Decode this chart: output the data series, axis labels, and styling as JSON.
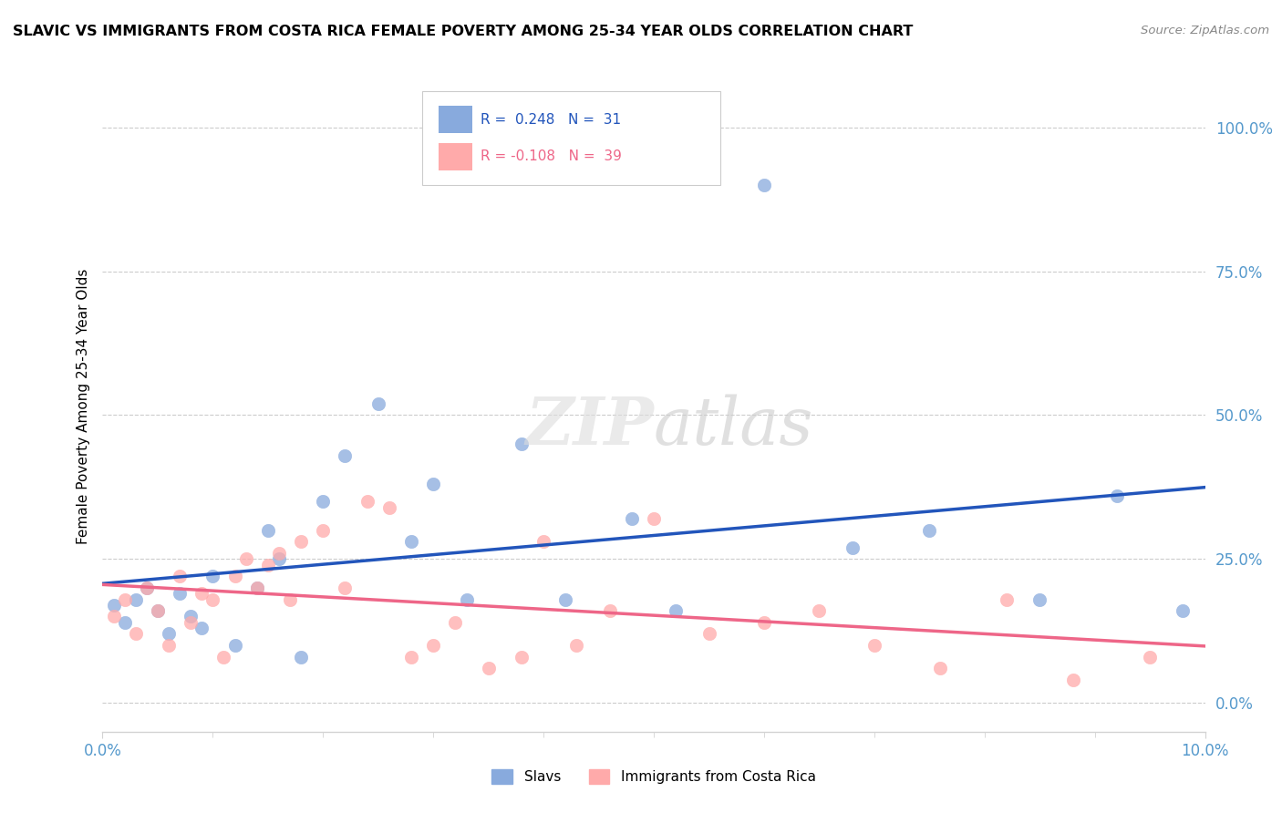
{
  "title": "SLAVIC VS IMMIGRANTS FROM COSTA RICA FEMALE POVERTY AMONG 25-34 YEAR OLDS CORRELATION CHART",
  "source": "Source: ZipAtlas.com",
  "ylabel": "Female Poverty Among 25-34 Year Olds",
  "yticks_labels": [
    "0.0%",
    "25.0%",
    "50.0%",
    "75.0%",
    "100.0%"
  ],
  "ytick_vals": [
    0.0,
    0.25,
    0.5,
    0.75,
    1.0
  ],
  "xlim": [
    0.0,
    0.1
  ],
  "ylim": [
    -0.05,
    1.08
  ],
  "color_slavs": "#88AADD",
  "color_cr": "#FFAAAA",
  "color_line_slavs": "#2255BB",
  "color_line_cr": "#EE6688",
  "slavs_x": [
    0.001,
    0.002,
    0.003,
    0.004,
    0.005,
    0.006,
    0.007,
    0.008,
    0.009,
    0.01,
    0.012,
    0.014,
    0.015,
    0.016,
    0.018,
    0.02,
    0.022,
    0.025,
    0.028,
    0.03,
    0.033,
    0.038,
    0.042,
    0.048,
    0.052,
    0.06,
    0.068,
    0.075,
    0.085,
    0.092,
    0.098
  ],
  "slavs_y": [
    0.17,
    0.14,
    0.18,
    0.2,
    0.16,
    0.12,
    0.19,
    0.15,
    0.13,
    0.22,
    0.1,
    0.2,
    0.3,
    0.25,
    0.08,
    0.35,
    0.43,
    0.52,
    0.28,
    0.38,
    0.18,
    0.45,
    0.18,
    0.32,
    0.16,
    0.9,
    0.27,
    0.3,
    0.18,
    0.36,
    0.16
  ],
  "cr_x": [
    0.001,
    0.002,
    0.003,
    0.004,
    0.005,
    0.006,
    0.007,
    0.008,
    0.009,
    0.01,
    0.011,
    0.012,
    0.013,
    0.014,
    0.015,
    0.016,
    0.017,
    0.018,
    0.02,
    0.022,
    0.024,
    0.026,
    0.028,
    0.03,
    0.032,
    0.035,
    0.038,
    0.04,
    0.043,
    0.046,
    0.05,
    0.055,
    0.06,
    0.065,
    0.07,
    0.076,
    0.082,
    0.088,
    0.095
  ],
  "cr_y": [
    0.15,
    0.18,
    0.12,
    0.2,
    0.16,
    0.1,
    0.22,
    0.14,
    0.19,
    0.18,
    0.08,
    0.22,
    0.25,
    0.2,
    0.24,
    0.26,
    0.18,
    0.28,
    0.3,
    0.2,
    0.35,
    0.34,
    0.08,
    0.1,
    0.14,
    0.06,
    0.08,
    0.28,
    0.1,
    0.16,
    0.32,
    0.12,
    0.14,
    0.16,
    0.1,
    0.06,
    0.18,
    0.04,
    0.08
  ]
}
